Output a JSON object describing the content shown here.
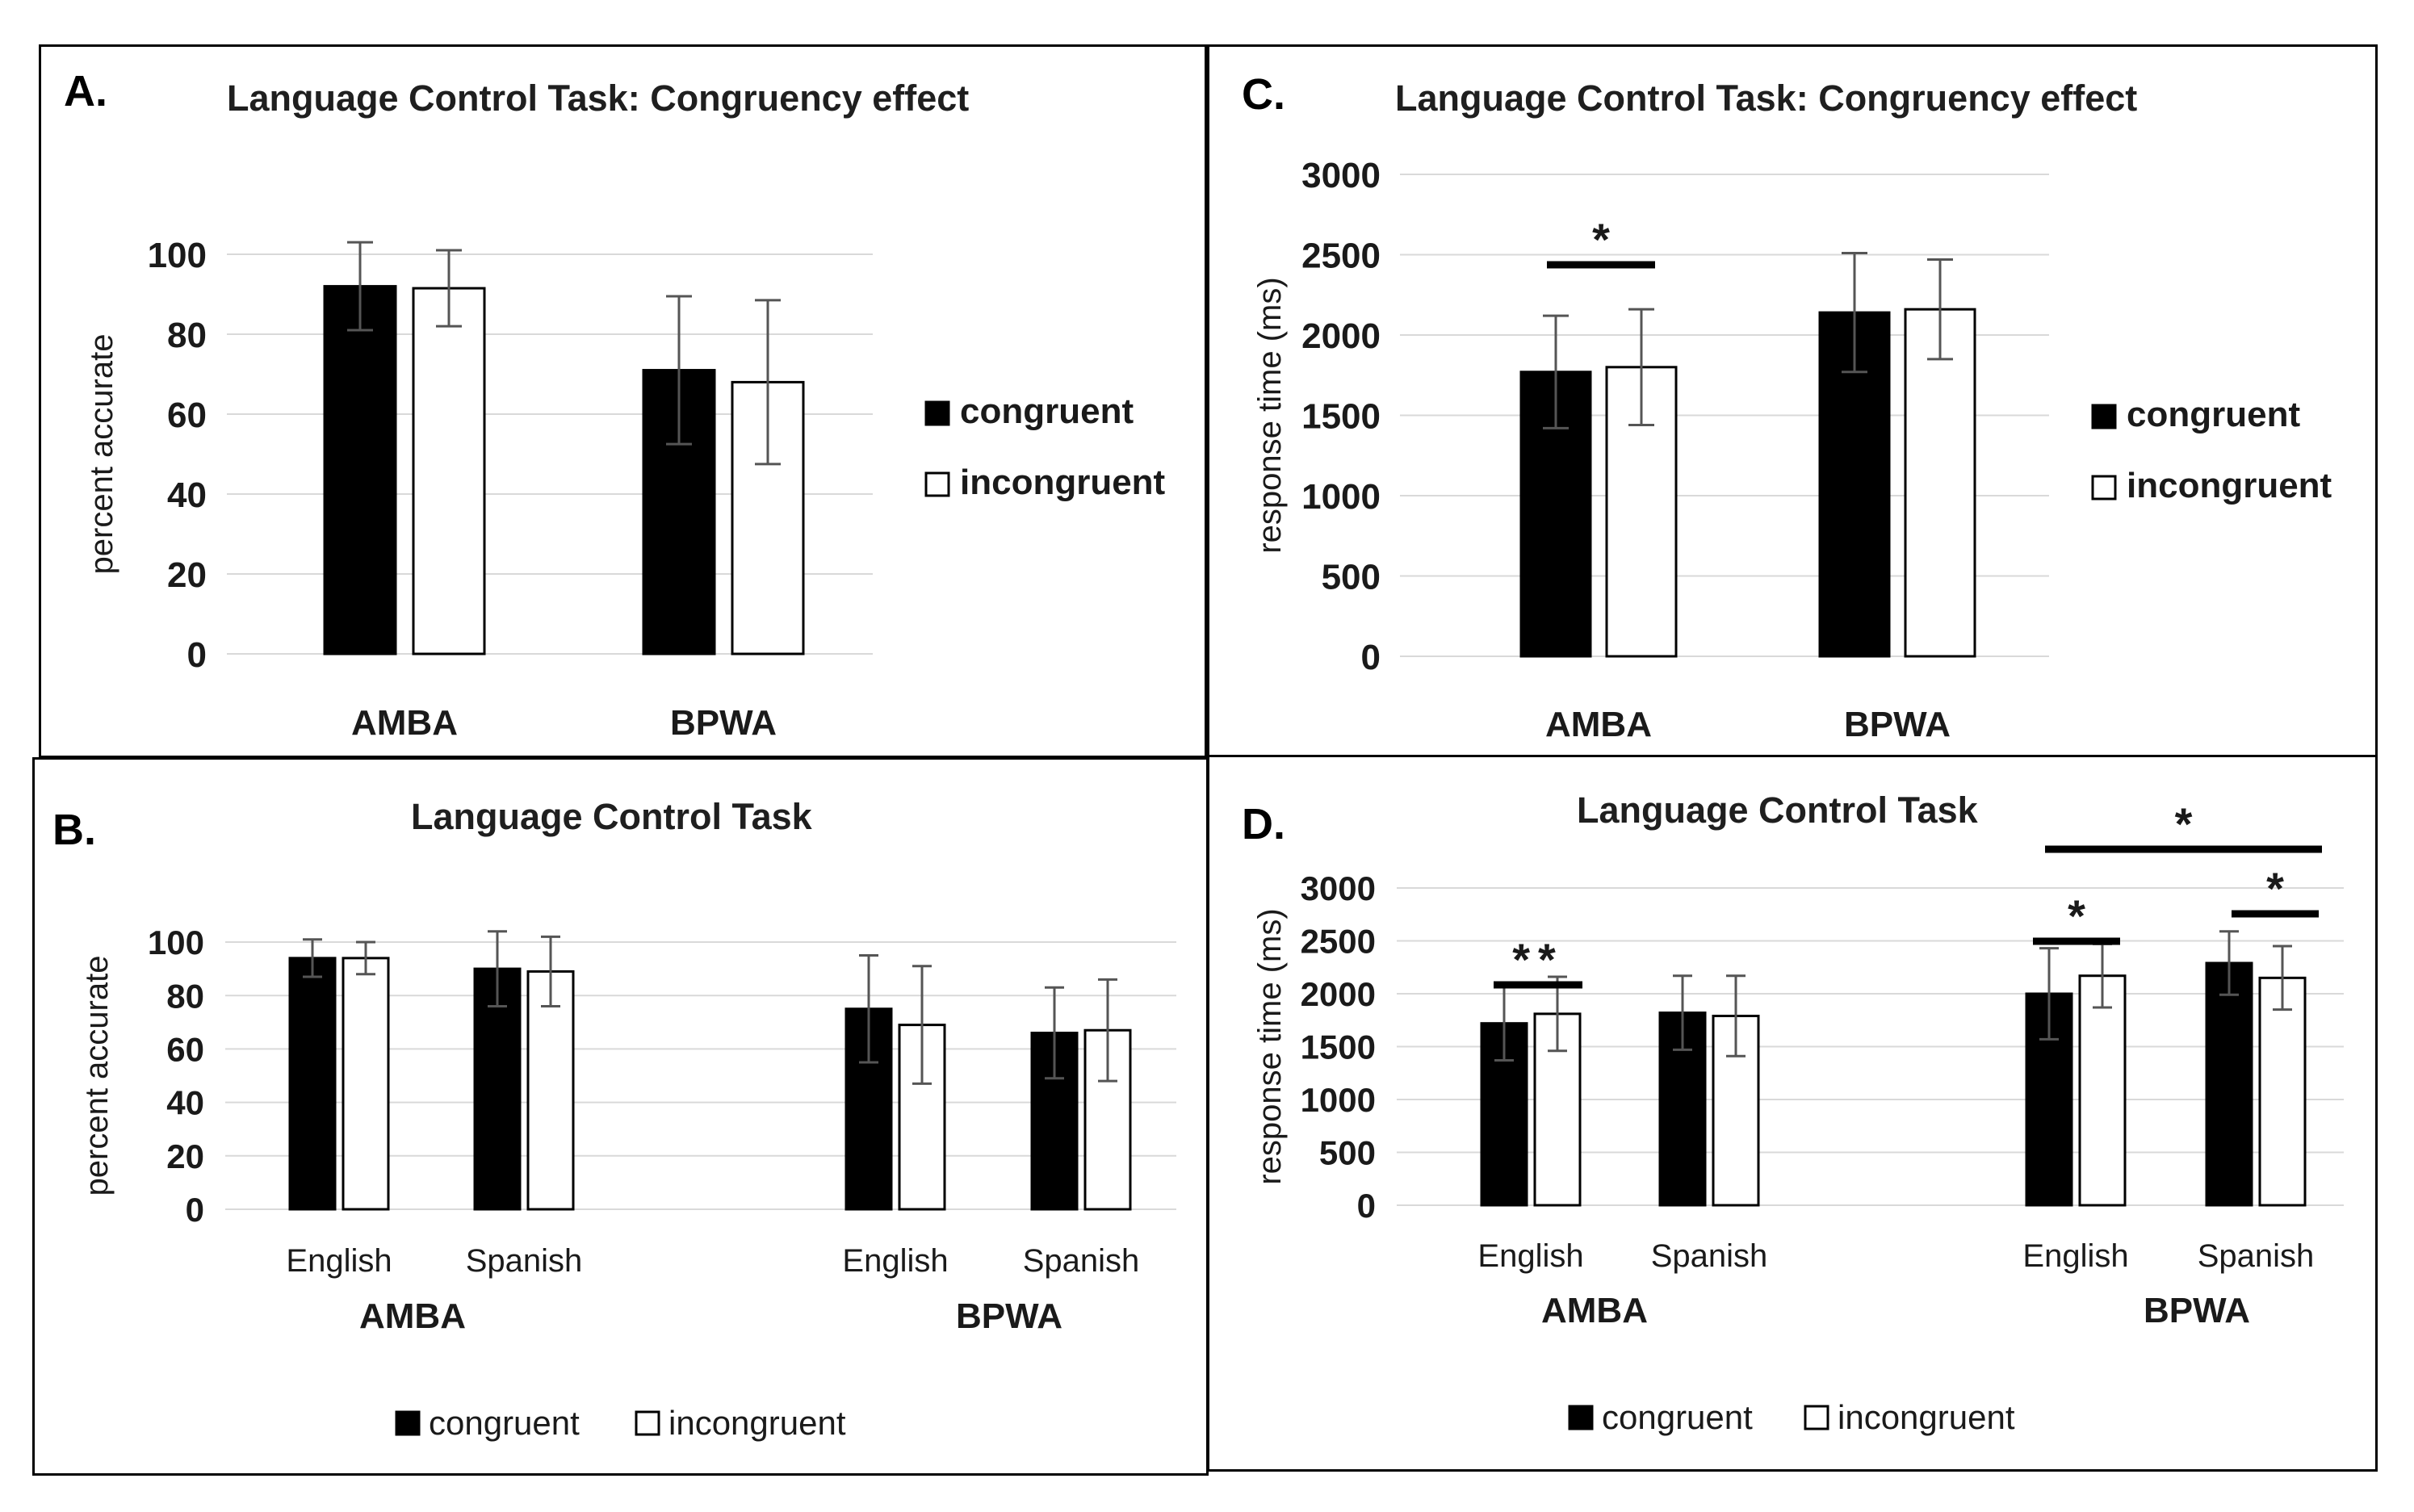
{
  "figure": {
    "colors": {
      "congruent": "#000000",
      "incongruent": "#ffffff",
      "grid": "#d9d9d9",
      "errorbar": "#555555"
    }
  },
  "chart_data": [
    {
      "id": "A",
      "type": "bar",
      "panel_label": "A.",
      "title": "Language Control Task: Congruency effect",
      "ylabel": "percent accurate",
      "ylim": [
        0,
        100
      ],
      "yticks": [
        "0",
        "20",
        "40",
        "60",
        "80",
        "100"
      ],
      "categories": [
        "AMBA",
        "BPWA"
      ],
      "series": [
        {
          "name": "congruent",
          "values": [
            92,
            71
          ],
          "errors": [
            11,
            18.5
          ]
        },
        {
          "name": "incongruent",
          "values": [
            91.5,
            68
          ],
          "errors": [
            9.5,
            20.5
          ]
        }
      ],
      "legend": [
        "congruent",
        "incongruent"
      ],
      "legend_position": "right"
    },
    {
      "id": "B",
      "type": "bar",
      "panel_label": "B.",
      "title": "Language Control Task",
      "ylabel": "percent accurate",
      "ylim": [
        0,
        100
      ],
      "yticks": [
        "0",
        "20",
        "40",
        "60",
        "80",
        "100"
      ],
      "groups": [
        "AMBA",
        "BPWA"
      ],
      "categories": [
        "English",
        "Spanish",
        "English",
        "Spanish"
      ],
      "series": [
        {
          "name": "congruent",
          "values": [
            94,
            90,
            75,
            66
          ],
          "errors": [
            7,
            14,
            20,
            17
          ]
        },
        {
          "name": "incongruent",
          "values": [
            94,
            89,
            69,
            67
          ],
          "errors": [
            6,
            13,
            22,
            19
          ]
        }
      ],
      "legend": [
        "congruent",
        "incongruent"
      ],
      "legend_position": "bottom"
    },
    {
      "id": "C",
      "type": "bar",
      "panel_label": "C.",
      "title": "Language Control Task: Congruency effect",
      "ylabel": "response time (ms)",
      "ylim": [
        0,
        3000
      ],
      "yticks": [
        "0",
        "500",
        "1000",
        "1500",
        "2000",
        "2500",
        "3000"
      ],
      "categories": [
        "AMBA",
        "BPWA"
      ],
      "series": [
        {
          "name": "congruent",
          "values": [
            1770,
            2140
          ],
          "errors": [
            350,
            370
          ]
        },
        {
          "name": "incongruent",
          "values": [
            1800,
            2160
          ],
          "errors": [
            360,
            310
          ]
        }
      ],
      "significance": [
        {
          "label": "*",
          "category": "AMBA"
        }
      ],
      "legend": [
        "congruent",
        "incongruent"
      ],
      "legend_position": "right"
    },
    {
      "id": "D",
      "type": "bar",
      "panel_label": "D.",
      "title": "Language Control Task",
      "ylabel": "response time (ms)",
      "ylim": [
        0,
        3000
      ],
      "yticks": [
        "0",
        "500",
        "1000",
        "1500",
        "2000",
        "2500",
        "3000"
      ],
      "groups": [
        "AMBA",
        "BPWA"
      ],
      "categories": [
        "English",
        "Spanish",
        "English",
        "Spanish"
      ],
      "series": [
        {
          "name": "congruent",
          "values": [
            1720,
            1820,
            2000,
            2290
          ],
          "errors": [
            350,
            350,
            430,
            300
          ]
        },
        {
          "name": "incongruent",
          "values": [
            1810,
            1790,
            2170,
            2150
          ],
          "errors": [
            350,
            380,
            300,
            300
          ]
        }
      ],
      "significance": [
        {
          "label": "**",
          "category": "AMBA English"
        },
        {
          "label": "*",
          "category": "BPWA English"
        },
        {
          "label": "*",
          "category": "BPWA Spanish"
        },
        {
          "label": "*",
          "category": "BPWA English vs Spanish"
        }
      ],
      "legend": [
        "congruent",
        "incongruent"
      ],
      "legend_position": "bottom"
    }
  ]
}
